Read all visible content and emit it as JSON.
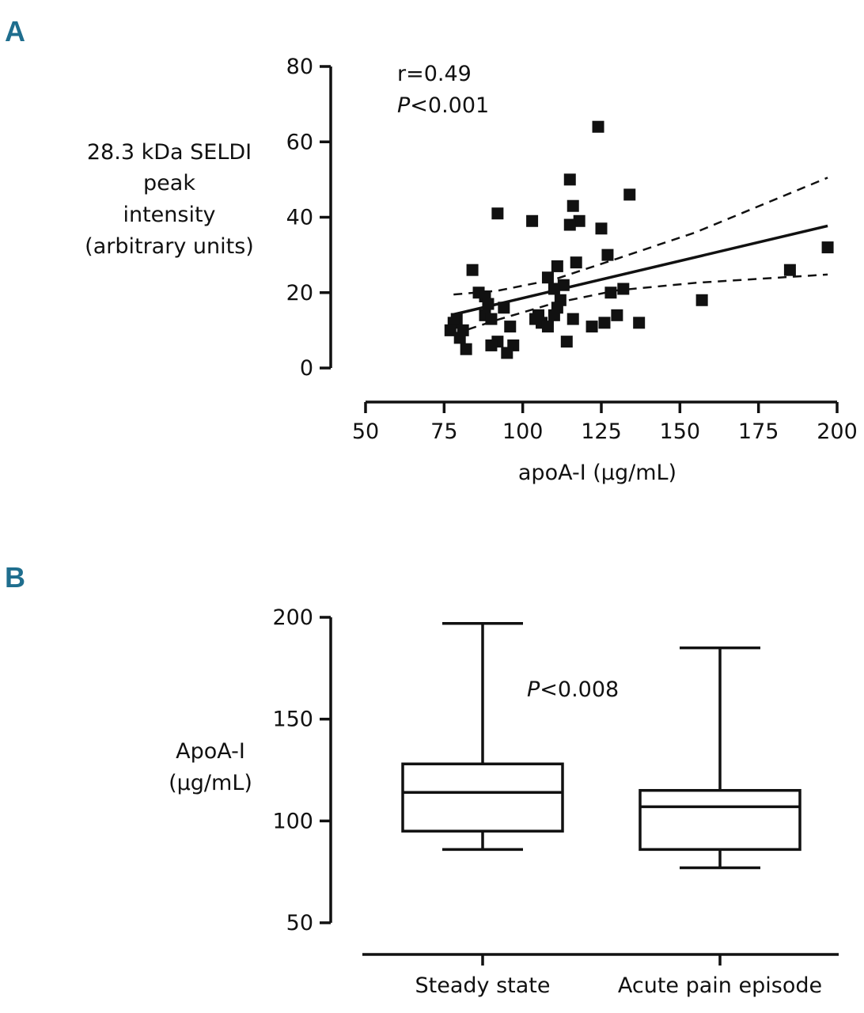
{
  "panels": {
    "a_letter": "A",
    "b_letter": "B"
  },
  "colors": {
    "panel_letter": "#1f6e8e",
    "ink": "#111111"
  },
  "chart_data": [
    {
      "type": "scatter",
      "panel": "A",
      "title": "",
      "xlabel": "apoA-I (µg/mL)",
      "ylabel_lines": [
        "28.3 kDa SELDI",
        "peak",
        "intensity",
        "(arbitrary units)"
      ],
      "xlim": [
        50,
        200
      ],
      "ylim": [
        0,
        80
      ],
      "xticks": [
        50,
        75,
        100,
        125,
        150,
        175,
        200
      ],
      "yticks": [
        0,
        20,
        40,
        60,
        80
      ],
      "grid": false,
      "stats": {
        "r_text": "r=0.49",
        "p_prefix": "P",
        "p_suffix": "<0.001"
      },
      "points": [
        [
          124,
          64
        ],
        [
          115,
          50
        ],
        [
          134,
          46
        ],
        [
          116,
          43
        ],
        [
          92,
          41
        ],
        [
          103,
          39
        ],
        [
          118,
          39
        ],
        [
          115,
          38
        ],
        [
          125,
          37
        ],
        [
          127,
          30
        ],
        [
          197,
          32
        ],
        [
          117,
          28
        ],
        [
          111,
          27
        ],
        [
          84,
          26
        ],
        [
          185,
          26
        ],
        [
          108,
          24
        ],
        [
          113,
          22
        ],
        [
          132,
          21
        ],
        [
          110,
          21
        ],
        [
          86,
          20
        ],
        [
          128,
          20
        ],
        [
          88,
          19
        ],
        [
          112,
          18
        ],
        [
          157,
          18
        ],
        [
          89,
          17
        ],
        [
          111,
          16
        ],
        [
          94,
          16
        ],
        [
          88,
          14
        ],
        [
          105,
          14
        ],
        [
          110,
          14
        ],
        [
          130,
          14
        ],
        [
          79,
          13
        ],
        [
          90,
          13
        ],
        [
          104,
          13
        ],
        [
          116,
          13
        ],
        [
          137,
          12
        ],
        [
          78,
          12
        ],
        [
          126,
          12
        ],
        [
          106,
          12
        ],
        [
          96,
          11
        ],
        [
          108,
          11
        ],
        [
          122,
          11
        ],
        [
          77,
          10
        ],
        [
          81,
          10
        ],
        [
          80,
          8
        ],
        [
          92,
          7
        ],
        [
          114,
          7
        ],
        [
          90,
          6
        ],
        [
          97,
          6
        ],
        [
          82,
          5
        ],
        [
          95,
          4
        ]
      ],
      "fit_line": {
        "x": [
          78,
          197
        ],
        "y": [
          14.2,
          37.7
        ]
      },
      "ci_upper": {
        "x": [
          78,
          92,
          110,
          130,
          155,
          197
        ],
        "y": [
          19.5,
          20.5,
          23.5,
          29.0,
          36.0,
          50.5
        ]
      },
      "ci_lower": {
        "x": [
          78,
          92,
          110,
          130,
          155,
          197
        ],
        "y": [
          9.0,
          12.8,
          17.2,
          20.6,
          22.6,
          24.8
        ]
      }
    },
    {
      "type": "box",
      "panel": "B",
      "title": "",
      "xlabel": "",
      "ylabel_lines": [
        "ApoA-I",
        "(µg/mL)"
      ],
      "ylim": [
        50,
        200
      ],
      "yticks": [
        50,
        100,
        150,
        200
      ],
      "grid": false,
      "stats": {
        "p_prefix": "P",
        "p_suffix": "<0.008"
      },
      "categories": [
        "Steady state",
        "Acute pain episode"
      ],
      "boxes": [
        {
          "name": "Steady state",
          "min": 86,
          "q1": 95,
          "median": 114,
          "q3": 128,
          "max": 197
        },
        {
          "name": "Acute pain episode",
          "min": 77,
          "q1": 86,
          "median": 107,
          "q3": 115,
          "max": 185
        }
      ]
    }
  ]
}
